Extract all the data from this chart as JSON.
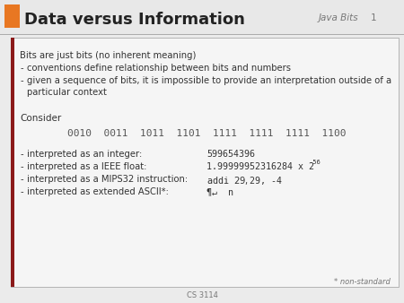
{
  "title": "Data versus Information",
  "header_right": "Java Bits",
  "slide_number": "1",
  "footer": "CS 3114",
  "orange_rect_color": "#E87722",
  "dark_red_bar_color": "#8B1A1A",
  "title_color": "#222222",
  "bg_color": "#EBEBEB",
  "content_bg": "#F5F5F5",
  "border_color": "#BBBBBB",
  "footnote": "* non-standard",
  "text_color": "#333333",
  "gray_text": "#777777",
  "header_bg": "#E8E8E8",
  "content_border_color": "#AAAAAA"
}
